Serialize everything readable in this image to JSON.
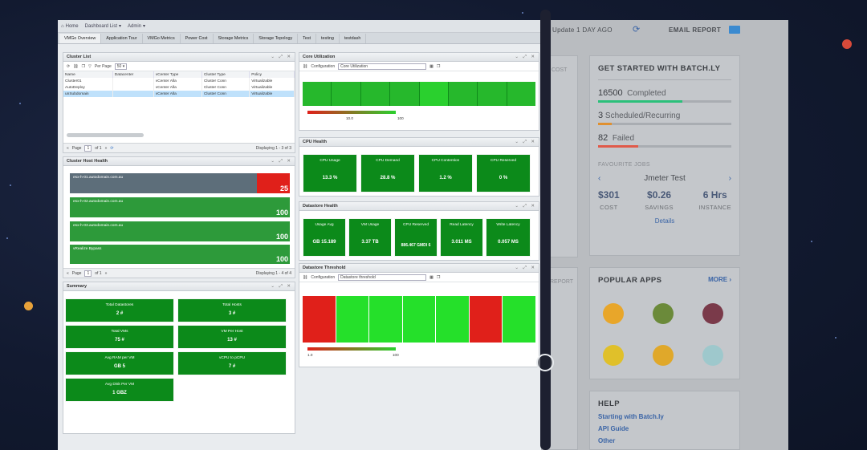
{
  "colors": {
    "green": "#0c8a1a",
    "bright_green": "#25e02a",
    "red": "#e0201a",
    "site_bg": "#b9bcc0",
    "link": "#3a64a6"
  },
  "dashboard": {
    "topbar": {
      "home": "Home",
      "dashboard_list": "Dashboard List",
      "admin": "Admin"
    },
    "tabs": [
      "VMGo Overview",
      "Application Tour",
      "VMGo Metrics",
      "Power Cost",
      "Storage Metrics",
      "Storage Topology",
      "Test",
      "testing",
      "testdash"
    ],
    "cluster_list": {
      "title": "Cluster List",
      "per_page_label": "Per Page",
      "per_page_value": "50",
      "columns": [
        "Name",
        "Datacenter",
        "vCenter Type",
        "Cluster Type",
        "Policy"
      ],
      "rows": [
        [
          "Cluster01",
          "",
          "vCenter Alla",
          "Cluster Conn",
          "Virtualizable"
        ],
        [
          "AutoDeploy",
          "",
          "vCenter Alla",
          "Cluster Conn",
          "Virtualizable"
        ],
        [
          "unSubdomain",
          "",
          "vCenter Alla",
          "Cluster Conn",
          "Virtualizable"
        ]
      ],
      "pager": {
        "page_label": "Page",
        "page_value": "1",
        "of_label": "of 1",
        "display": "Displaying 1 - 3 of 3"
      }
    },
    "cluster_host_health": {
      "title": "Cluster Host Health",
      "hosts": [
        {
          "name": "esx-h-01.autodomain.com.au",
          "value": "25",
          "status": "red"
        },
        {
          "name": "esx-h-02.autodomain.com.au",
          "value": "100",
          "status": "green"
        },
        {
          "name": "esx-h-03.autodomain.com.au",
          "value": "100",
          "status": "green"
        },
        {
          "name": "vRealize Bypass",
          "value": "100",
          "status": "green"
        }
      ],
      "pager": {
        "page_label": "Page",
        "page_value": "1",
        "of_label": "of 1",
        "display": "Displaying 1 - 4 of 4"
      }
    },
    "summary": {
      "title": "Summary",
      "tiles": [
        {
          "label": "Total Datastores",
          "value": "2 #"
        },
        {
          "label": "Total Hosts",
          "value": "3 #"
        },
        {
          "label": "Total VMs",
          "value": "75 #"
        },
        {
          "label": "VM Per Host",
          "value": "13 #"
        },
        {
          "label": "Avg RAM per VM",
          "value": "GB 5"
        },
        {
          "label": "vCPU to pCPU",
          "value": "7 #"
        },
        {
          "label": "Avg Disk Per VM",
          "value": "1 GBZ"
        }
      ]
    },
    "core_utilization": {
      "title": "Core Utilization",
      "config_label": "Configuration",
      "config_value": "Core Utilization",
      "axis": [
        "10.0",
        "100"
      ]
    },
    "cpu_health": {
      "title": "CPU Health",
      "tiles": [
        {
          "label": "CPU Usage",
          "value": "13.3 %"
        },
        {
          "label": "CPU Demand",
          "value": "28.8 %"
        },
        {
          "label": "CPU Contention",
          "value": "1.2 %"
        },
        {
          "label": "CPU Reserved",
          "value": "0 %"
        }
      ]
    },
    "datastore_health": {
      "title": "Datastore Health",
      "tiles": [
        {
          "label": "Usage Avg",
          "value": "GB 15.189"
        },
        {
          "label": "VM Usage",
          "value": "3.37 TB"
        },
        {
          "label": "CPU Reserved",
          "value": "886.467 GMDI 6"
        },
        {
          "label": "Read Latency",
          "value": "3.011 MS"
        },
        {
          "label": "Write Latency",
          "value": "0.057 MS"
        }
      ]
    },
    "datastore_threshold": {
      "title": "Datastore Threshold",
      "config_label": "Configuration",
      "config_value": "Datastore threshold",
      "axis": [
        "1.0",
        "100"
      ]
    }
  },
  "site": {
    "header": {
      "update_text": "Update 1 DAY AGO",
      "email_report": "EMAIL REPORT"
    },
    "partial_labels": {
      "cost": "COST",
      "report": "REPORT"
    },
    "get_started": {
      "title": "GET STARTED WITH BATCH.LY",
      "progress": [
        {
          "count": "16500",
          "label": "Completed",
          "fraction": 0.63,
          "color": "#2bc07a"
        },
        {
          "count": "3",
          "label": "Scheduled/Recurring",
          "fraction": 0.1,
          "color": "#e09030"
        },
        {
          "count": "82",
          "label": "Failed",
          "fraction": 0.3,
          "color": "#e05a4a"
        }
      ],
      "favourite_label": "FAVOURITE JOBS",
      "favourite_job": "Jmeter Test",
      "stats": [
        {
          "value": "$301",
          "label": "COST"
        },
        {
          "value": "$0.26",
          "label": "SAVINGS"
        },
        {
          "value": "6 Hrs",
          "label": "INSTANCE"
        }
      ],
      "details_link": "Details"
    },
    "popular_apps": {
      "title": "POPULAR APPS",
      "more": "MORE",
      "apps": [
        "jenkins-icon",
        "tomcat-icon",
        "jmeter-icon",
        "hadoop-icon",
        "docker-icon",
        "redis-icon"
      ]
    },
    "help": {
      "title": "HELP",
      "links": [
        "Starting with Batch.ly",
        "API Guide",
        "Other"
      ]
    }
  }
}
